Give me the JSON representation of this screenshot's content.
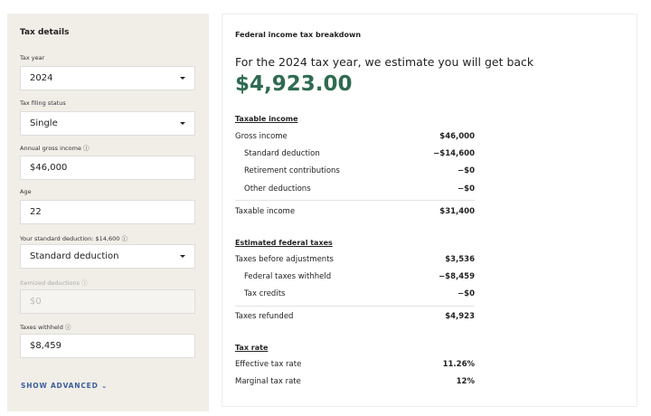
{
  "sidebar": {
    "title": "Tax details",
    "tax_year": {
      "label": "Tax year",
      "value": "2024"
    },
    "filing_status": {
      "label": "Tax filing status",
      "value": "Single"
    },
    "gross_income": {
      "label": "Annual gross income",
      "value": "$46,000"
    },
    "age": {
      "label": "Age",
      "value": "22"
    },
    "deduction": {
      "label": "Your standard deduction: $14,600",
      "value": "Standard deduction"
    },
    "itemized": {
      "label": "Itemized deductions",
      "placeholder": "$0"
    },
    "withheld": {
      "label": "Taxes withheld",
      "value": "$8,459"
    },
    "show_advanced": "SHOW ADVANCED"
  },
  "main": {
    "title": "Federal income tax breakdown",
    "subtitle": "For the 2024 tax year, we estimate you will get back",
    "amount": "$4,923.00",
    "amount_color": "#2f6b50",
    "sections": [
      {
        "title": "Taxable income",
        "rows": [
          {
            "label": "Gross income",
            "value": "$46,000"
          },
          {
            "label": "Standard deduction",
            "value": "−$14,600"
          },
          {
            "label": "Retirement contributions",
            "value": "−$0"
          },
          {
            "label": "Other deductions",
            "value": "−$0"
          },
          {
            "label": "Taxable income",
            "value": "$31,400"
          }
        ]
      },
      {
        "title": "Estimated federal taxes",
        "rows": [
          {
            "label": "Taxes before adjustments",
            "value": "$3,536"
          },
          {
            "label": "Federal taxes withheld",
            "value": "−$8,459"
          },
          {
            "label": "Tax credits",
            "value": "−$0"
          },
          {
            "label": "Taxes refunded",
            "value": "$4,923"
          }
        ]
      },
      {
        "title": "Tax rate",
        "rows": [
          {
            "label": "Effective tax rate",
            "value": "11.26%"
          },
          {
            "label": "Marginal tax rate",
            "value": "12%"
          }
        ]
      }
    ]
  }
}
